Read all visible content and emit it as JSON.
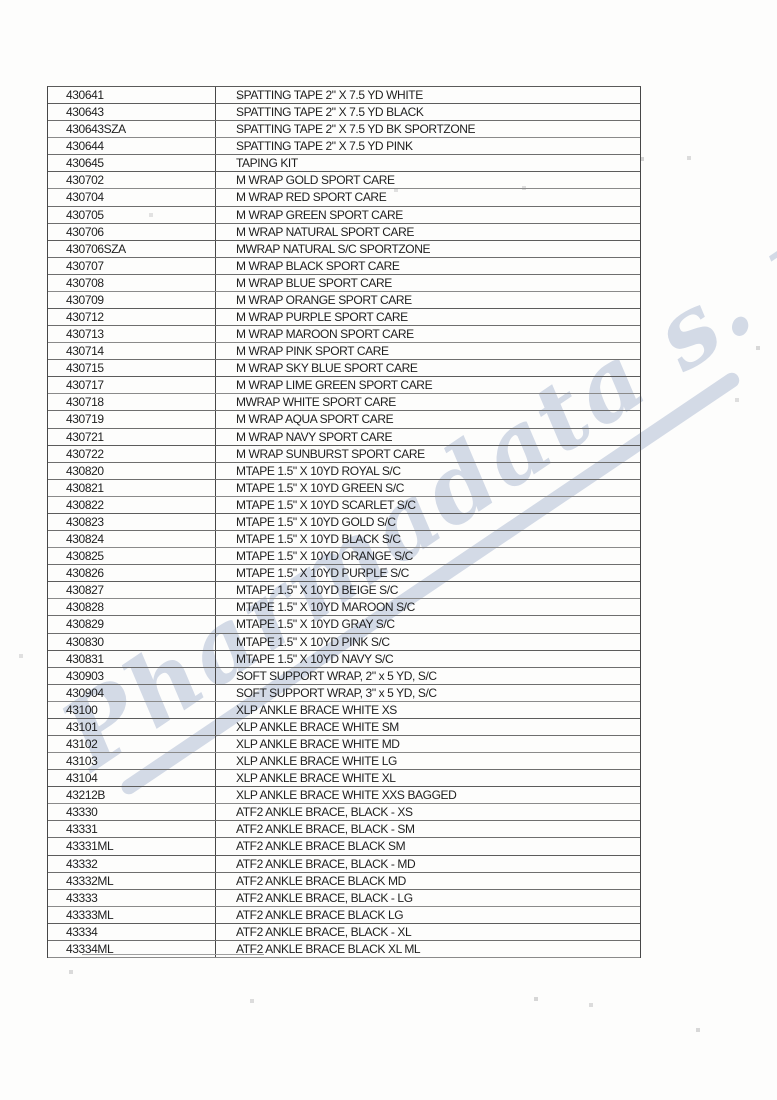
{
  "watermark": {
    "text": "Pharmadata s. r. o.",
    "color": "#ccd4e3"
  },
  "table": {
    "columns": [
      "item_code",
      "description"
    ],
    "rows": [
      {
        "code": "430641",
        "description": "SPATTING TAPE 2\" X 7.5 YD WHITE"
      },
      {
        "code": "430643",
        "description": "SPATTING TAPE 2\" X 7.5 YD BLACK"
      },
      {
        "code": "430643SZA",
        "description": "SPATTING TAPE 2\" X 7.5 YD BK SPORTZONE"
      },
      {
        "code": "430644",
        "description": "SPATTING TAPE 2\" X 7.5 YD PINK"
      },
      {
        "code": "430645",
        "description": "TAPING KIT"
      },
      {
        "code": "430702",
        "description": "M WRAP GOLD SPORT CARE"
      },
      {
        "code": "430704",
        "description": "M WRAP RED SPORT CARE"
      },
      {
        "code": "430705",
        "description": "M WRAP GREEN SPORT CARE"
      },
      {
        "code": "430706",
        "description": "M WRAP NATURAL SPORT CARE"
      },
      {
        "code": "430706SZA",
        "description": "MWRAP NATURAL S/C SPORTZONE"
      },
      {
        "code": "430707",
        "description": "M WRAP BLACK SPORT CARE"
      },
      {
        "code": "430708",
        "description": "M WRAP BLUE SPORT CARE"
      },
      {
        "code": "430709",
        "description": "M WRAP ORANGE SPORT CARE"
      },
      {
        "code": "430712",
        "description": "M WRAP PURPLE SPORT CARE"
      },
      {
        "code": "430713",
        "description": "M WRAP MAROON SPORT CARE"
      },
      {
        "code": "430714",
        "description": "M WRAP PINK SPORT CARE"
      },
      {
        "code": "430715",
        "description": "M WRAP SKY BLUE SPORT CARE"
      },
      {
        "code": "430717",
        "description": "M WRAP LIME GREEN SPORT CARE"
      },
      {
        "code": "430718",
        "description": "MWRAP WHITE SPORT CARE"
      },
      {
        "code": "430719",
        "description": "M WRAP AQUA SPORT CARE"
      },
      {
        "code": "430721",
        "description": "M WRAP NAVY SPORT CARE"
      },
      {
        "code": "430722",
        "description": "M WRAP SUNBURST SPORT CARE"
      },
      {
        "code": "430820",
        "description": "MTAPE 1.5\" X 10YD ROYAL S/C"
      },
      {
        "code": "430821",
        "description": "MTAPE 1.5\" X 10YD GREEN S/C"
      },
      {
        "code": "430822",
        "description": "MTAPE 1.5\" X 10YD SCARLET S/C"
      },
      {
        "code": "430823",
        "description": "MTAPE 1.5\" X 10YD GOLD S/C"
      },
      {
        "code": "430824",
        "description": "MTAPE 1.5\" X 10YD BLACK S/C"
      },
      {
        "code": "430825",
        "description": "MTAPE 1.5\" X 10YD ORANGE S/C"
      },
      {
        "code": "430826",
        "description": "MTAPE 1.5\" X 10YD PURPLE S/C"
      },
      {
        "code": "430827",
        "description": "MTAPE 1.5\" X 10YD BEIGE S/C"
      },
      {
        "code": "430828",
        "description": "MTAPE 1.5\" X 10YD MAROON S/C"
      },
      {
        "code": "430829",
        "description": "MTAPE 1.5\" X 10YD GRAY S/C"
      },
      {
        "code": "430830",
        "description": "MTAPE 1.5\" X 10YD PINK S/C"
      },
      {
        "code": "430831",
        "description": "MTAPE 1.5\" X 10YD NAVY S/C"
      },
      {
        "code": "430903",
        "description": "SOFT SUPPORT WRAP, 2\" x 5 YD, S/C"
      },
      {
        "code": "430904",
        "description": "SOFT SUPPORT WRAP, 3\" x 5 YD, S/C"
      },
      {
        "code": "43100",
        "description": "XLP ANKLE BRACE WHITE XS"
      },
      {
        "code": "43101",
        "description": "XLP ANKLE BRACE WHITE SM"
      },
      {
        "code": "43102",
        "description": "XLP ANKLE BRACE WHITE MD"
      },
      {
        "code": "43103",
        "description": "XLP ANKLE BRACE WHITE LG"
      },
      {
        "code": "43104",
        "description": "XLP ANKLE BRACE WHITE XL"
      },
      {
        "code": "43212B",
        "description": "XLP ANKLE BRACE WHITE XXS BAGGED"
      },
      {
        "code": "43330",
        "description": "ATF2 ANKLE BRACE, BLACK - XS"
      },
      {
        "code": "43331",
        "description": "ATF2 ANKLE BRACE, BLACK - SM"
      },
      {
        "code": "43331ML",
        "description": "ATF2 ANKLE BRACE BLACK SM"
      },
      {
        "code": "43332",
        "description": "ATF2 ANKLE BRACE, BLACK - MD"
      },
      {
        "code": "43332ML",
        "description": "ATF2 ANKLE BRACE BLACK MD"
      },
      {
        "code": "43333",
        "description": "ATF2 ANKLE BRACE, BLACK - LG"
      },
      {
        "code": "43333ML",
        "description": "ATF2 ANKLE BRACE BLACK LG"
      },
      {
        "code": "43334",
        "description": "ATF2 ANKLE BRACE, BLACK - XL"
      },
      {
        "code": "43334ML",
        "description": "ATF2 ANKLE BRACE BLACK XL ML"
      }
    ]
  }
}
